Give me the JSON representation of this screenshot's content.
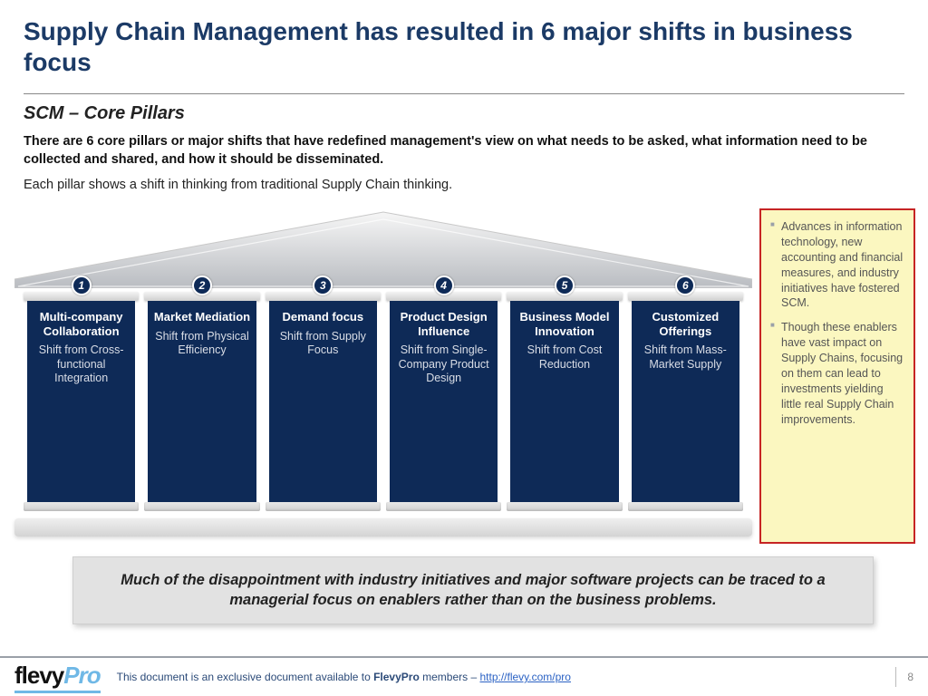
{
  "colors": {
    "title": "#1b3a66",
    "pillar_bg": "#0e2a57",
    "pillar_text": "#ffffff",
    "pillar_sub": "#d9dde6",
    "note_bg": "#fbf7c0",
    "note_border": "#c62424",
    "callout_bg": "#e2e2e2",
    "footer_accent": "#6fb8e6",
    "link": "#2b62c4"
  },
  "title": "Supply Chain Management has resulted in 6 major shifts in business focus",
  "subtitle": "SCM – Core Pillars",
  "intro_bold": "There are 6 core pillars or major shifts that have redefined management's view on what needs to be asked, what information need to be collected and shared, and how it should be disseminated.",
  "intro_regular": "Each pillar shows a shift in thinking from traditional Supply Chain thinking.",
  "pillars": [
    {
      "num": "1",
      "name": "Multi-company Collaboration",
      "shift": "Shift from Cross-functional Integration"
    },
    {
      "num": "2",
      "name": "Market Mediation",
      "shift": "Shift from Physical Efficiency"
    },
    {
      "num": "3",
      "name": "Demand focus",
      "shift": "Shift from Supply Focus"
    },
    {
      "num": "4",
      "name": "Product Design Influence",
      "shift": "Shift from Single-Company Product Design"
    },
    {
      "num": "5",
      "name": "Business Model Innovation",
      "shift": "Shift from Cost Reduction"
    },
    {
      "num": "6",
      "name": "Customized Offerings",
      "shift": "Shift from Mass-Market Supply"
    }
  ],
  "side_notes": [
    "Advances in information technology, new accounting and financial measures, and industry initiatives have fostered SCM.",
    "Though these enablers have vast impact on Supply Chains, focusing on them can lead to investments yielding little real Supply Chain improvements."
  ],
  "callout": "Much of the disappointment with industry initiatives and major software projects can be traced to a managerial focus on enablers rather than on the business problems.",
  "footer": {
    "logo_a": "flevy",
    "logo_b": "Pro",
    "text_pre": "This document is an exclusive document available to ",
    "text_bold": "FlevyPro",
    "text_post": " members – ",
    "link": "http://flevy.com/pro",
    "page": "8"
  }
}
